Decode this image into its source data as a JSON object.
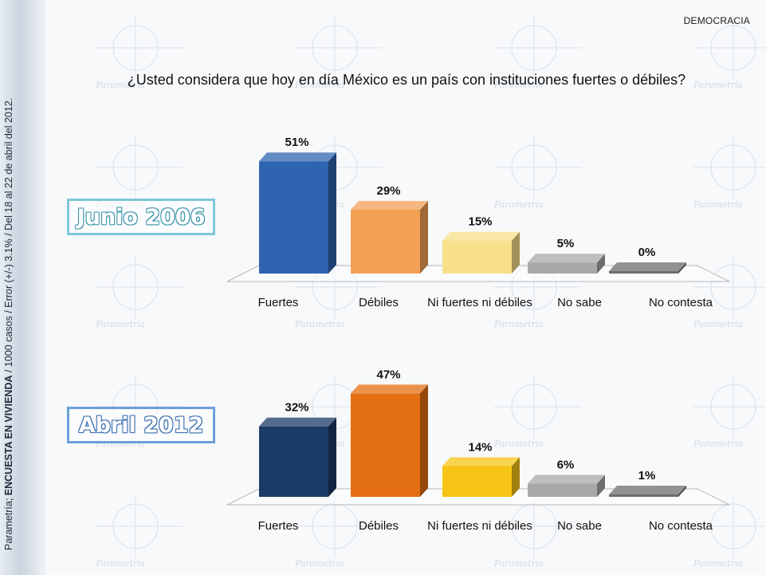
{
  "section_tag": "DEMOCRACIA",
  "question": "¿Usted considera que hoy en día México es un país con instituciones fuertes o débiles?",
  "watermark_word": "Parametría",
  "side_caption": {
    "prefix": "Parametría; ",
    "bold": "ENCUESTA EN VIVIENDA",
    "suffix": " / 1000 casos / Error (+/-) 3.1% / Del 18 al 22 de abril del 2012."
  },
  "colors": {
    "fuertes_2006": "#2f64b0",
    "debiles_2006": "#f3a055",
    "ni_2006": "#f8e08a",
    "no_sabe": "#a8a8a8",
    "no_contesta": "#6e6e6e",
    "fuertes_2012": "#1c3a66",
    "debiles_2012": "#e46e12",
    "ni_2012": "#f6c414"
  },
  "chart_data": [
    {
      "type": "bar",
      "title": "Junio 2006",
      "categories": [
        "Fuertes",
        "Débiles",
        "Ni fuertes ni débiles",
        "No sabe",
        "No contesta"
      ],
      "values": [
        51,
        29,
        15,
        5,
        0
      ],
      "value_labels": [
        "51%",
        "29%",
        "15%",
        "5%",
        "0%"
      ],
      "colors": [
        "#2f64b0",
        "#f3a055",
        "#f8e08a",
        "#a8a8a8",
        "#6e6e6e"
      ],
      "ylim": [
        0,
        100
      ]
    },
    {
      "type": "bar",
      "title": "Abril 2012",
      "categories": [
        "Fuertes",
        "Débiles",
        "Ni fuertes ni débiles",
        "No sabe",
        "No contesta"
      ],
      "values": [
        32,
        47,
        14,
        6,
        1
      ],
      "value_labels": [
        "32%",
        "47%",
        "14%",
        "6%",
        "1%"
      ],
      "colors": [
        "#1c3a66",
        "#e46e12",
        "#f6c414",
        "#a8a8a8",
        "#6e6e6e"
      ],
      "ylim": [
        0,
        100
      ]
    }
  ]
}
